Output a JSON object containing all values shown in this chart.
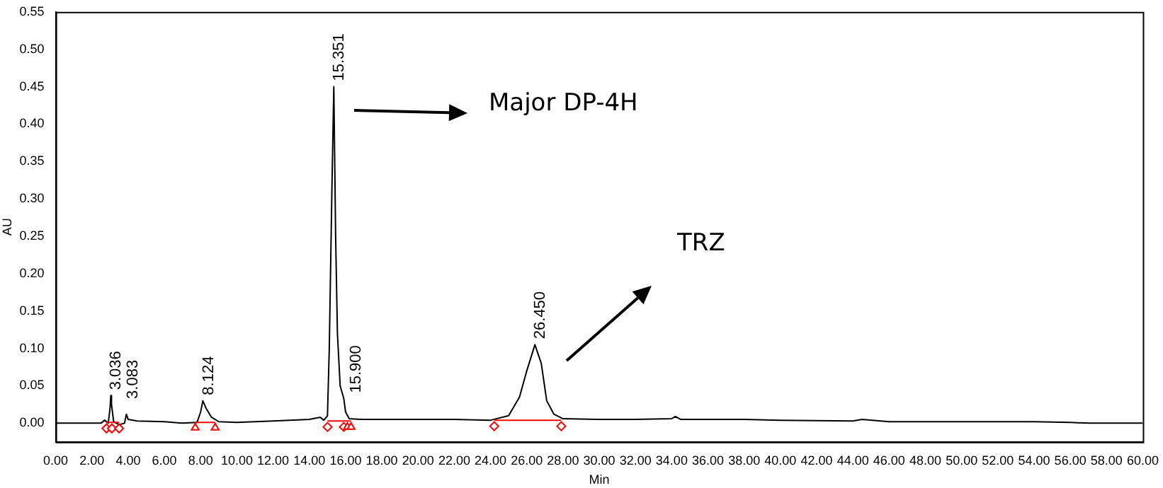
{
  "chart_data": {
    "type": "line",
    "xlabel": "Min",
    "ylabel": "AU",
    "xlim": [
      0,
      60
    ],
    "ylim": [
      -0.025,
      0.55
    ],
    "xticks": [
      {
        "value": 0,
        "label": "0.00"
      },
      {
        "value": 2,
        "label": "2.00"
      },
      {
        "value": 4,
        "label": "4.00"
      },
      {
        "value": 6,
        "label": "6.00"
      },
      {
        "value": 8,
        "label": "8.00"
      },
      {
        "value": 10,
        "label": "10.00"
      },
      {
        "value": 12,
        "label": "12.00"
      },
      {
        "value": 14,
        "label": "14.00"
      },
      {
        "value": 16,
        "label": "16.00"
      },
      {
        "value": 18,
        "label": "18.00"
      },
      {
        "value": 20,
        "label": "20.00"
      },
      {
        "value": 22,
        "label": "22.00"
      },
      {
        "value": 24,
        "label": "24.00"
      },
      {
        "value": 26,
        "label": "26.00"
      },
      {
        "value": 28,
        "label": "28.00"
      },
      {
        "value": 30,
        "label": "30.00"
      },
      {
        "value": 32,
        "label": "32.00"
      },
      {
        "value": 34,
        "label": "34.00"
      },
      {
        "value": 36,
        "label": "36.00"
      },
      {
        "value": 38,
        "label": "38.00"
      },
      {
        "value": 40,
        "label": "40.00"
      },
      {
        "value": 42,
        "label": "42.00"
      },
      {
        "value": 44,
        "label": "44.00"
      },
      {
        "value": 46,
        "label": "46.00"
      },
      {
        "value": 48,
        "label": "48.00"
      },
      {
        "value": 50,
        "label": "50.00"
      },
      {
        "value": 52,
        "label": "52.00"
      },
      {
        "value": 54,
        "label": "54.00"
      },
      {
        "value": 56,
        "label": "56.00"
      },
      {
        "value": 58,
        "label": "58.00"
      },
      {
        "value": 60,
        "label": "60.00"
      }
    ],
    "yticks": [
      {
        "value": 0,
        "label": "0.00"
      },
      {
        "value": 0.05,
        "label": "0.05"
      },
      {
        "value": 0.1,
        "label": "0.10"
      },
      {
        "value": 0.15,
        "label": "0.15"
      },
      {
        "value": 0.2,
        "label": "0.20"
      },
      {
        "value": 0.25,
        "label": "0.25"
      },
      {
        "value": 0.3,
        "label": "0.30"
      },
      {
        "value": 0.35,
        "label": "0.35"
      },
      {
        "value": 0.4,
        "label": "0.40"
      },
      {
        "value": 0.45,
        "label": "0.45"
      },
      {
        "value": 0.5,
        "label": "0.50"
      },
      {
        "value": 0.55,
        "label": "0.55"
      }
    ],
    "grid": false,
    "legend": false,
    "series": [
      {
        "color": "#000000",
        "marker": "none",
        "x": [
          0,
          2.5,
          2.7,
          2.9,
          3.0,
          3.04,
          3.08,
          3.2,
          3.5,
          3.8,
          3.9,
          4.0,
          4.5,
          6,
          7,
          7.8,
          8.0,
          8.12,
          8.3,
          8.6,
          9,
          10,
          12,
          14,
          14.6,
          14.8,
          15.0,
          15.1,
          15.25,
          15.35,
          15.45,
          15.55,
          15.7,
          15.9,
          16.0,
          16.2,
          17,
          20,
          22,
          24,
          25,
          25.6,
          26,
          26.45,
          26.8,
          27.1,
          27.5,
          28,
          30,
          32,
          34,
          34.2,
          34.5,
          38,
          40,
          44,
          44.5,
          46,
          54,
          56,
          57,
          60
        ],
        "values": [
          0,
          0,
          0.004,
          0,
          0.02,
          0.037,
          0.025,
          0.002,
          -0.002,
          0,
          0.012,
          0.005,
          0.003,
          0.002,
          0,
          0.001,
          0.015,
          0.03,
          0.02,
          0.008,
          0.002,
          0.001,
          0.003,
          0.005,
          0.008,
          0.004,
          0.01,
          0.1,
          0.32,
          0.45,
          0.25,
          0.12,
          0.05,
          0.033,
          0.015,
          0.006,
          0.005,
          0.005,
          0.005,
          0.004,
          0.01,
          0.035,
          0.07,
          0.105,
          0.08,
          0.03,
          0.012,
          0.006,
          0.005,
          0.005,
          0.006,
          0.009,
          0.005,
          0.005,
          0.004,
          0.003,
          0.005,
          0.002,
          0.002,
          0.001,
          0,
          0
        ]
      },
      {
        "color": "#ff0000",
        "marker": "none",
        "x": [
          2.8,
          3.5
        ],
        "values": [
          0.001,
          0.001
        ]
      },
      {
        "color": "#ff0000",
        "marker": "none",
        "x": [
          7.7,
          8.8
        ],
        "values": [
          0.001,
          0.001
        ]
      },
      {
        "color": "#ff0000",
        "marker": "none",
        "x": [
          15.0,
          16.3
        ],
        "values": [
          0.003,
          0.003
        ]
      },
      {
        "color": "#ff0000",
        "marker": "none",
        "x": [
          24.2,
          27.9
        ],
        "values": [
          0.004,
          0.004
        ]
      },
      {
        "type": "scatter",
        "color": "#ff0000",
        "marker": "diamond",
        "x": [
          2.8,
          3.1,
          3.5,
          15.0,
          15.9,
          24.2,
          27.9
        ],
        "values": [
          -0.007,
          -0.007,
          -0.007,
          -0.005,
          -0.005,
          -0.004,
          -0.004
        ]
      },
      {
        "type": "scatter",
        "color": "#ff0000",
        "marker": "triangle",
        "x": [
          7.7,
          8.8,
          16.1,
          16.3
        ],
        "values": [
          -0.006,
          -0.006,
          -0.005,
          -0.005
        ]
      }
    ],
    "annotations": [
      {
        "text": "3.036",
        "x": 3.036,
        "y": 0.037
      },
      {
        "text": "3.083",
        "x": 3.083,
        "y": 0.025
      },
      {
        "text": "8.124",
        "x": 8.124,
        "y": 0.03
      },
      {
        "text": "15.351",
        "x": 15.351,
        "y": 0.45
      },
      {
        "text": "15.900",
        "x": 15.9,
        "y": 0.033
      },
      {
        "text": "26.450",
        "x": 26.45,
        "y": 0.105
      },
      "Major DP-4H",
      "TRZ"
    ]
  }
}
